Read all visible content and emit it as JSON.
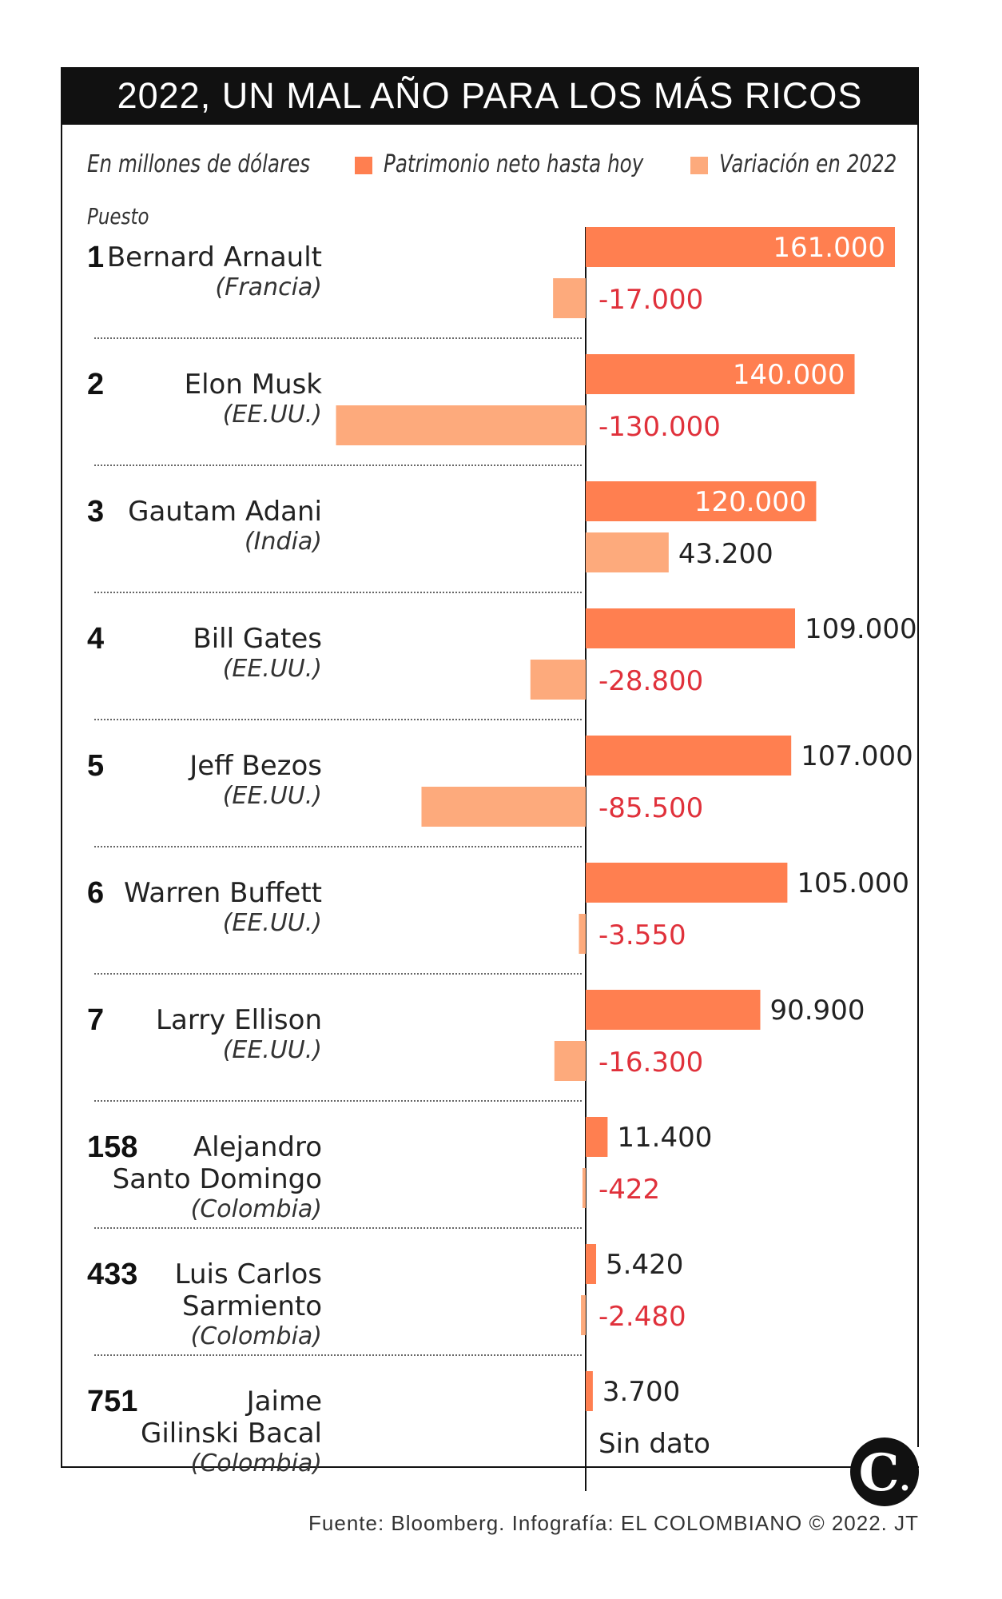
{
  "title": "2022, UN MAL AÑO PARA LOS MÁS RICOS",
  "unit_note": "En millones de dólares",
  "rank_header": "Puesto",
  "colors": {
    "net_worth": "#ff7f50",
    "change": "#fdaa7c",
    "negative_label": "#e0313b",
    "text": "#222222"
  },
  "chart_data": {
    "type": "bar",
    "orientation": "horizontal",
    "unit": "En millones de dólares",
    "series": [
      {
        "name": "Patrimonio neto hasta hoy",
        "values": [
          161000,
          140000,
          120000,
          109000,
          107000,
          105000,
          90900,
          11400,
          5420,
          3700
        ]
      },
      {
        "name": "Variación en 2022",
        "values": [
          -17000,
          -130000,
          43200,
          -28800,
          -85500,
          -3550,
          -16300,
          -422,
          -2480,
          null
        ]
      }
    ],
    "rows": [
      {
        "rank": "1",
        "name": [
          "Bernard Arnault"
        ],
        "country": "(Francia)",
        "net": 161000,
        "net_label": "161.000",
        "change": -17000,
        "change_label": "-17.000"
      },
      {
        "rank": "2",
        "name": [
          "Elon Musk"
        ],
        "country": "(EE.UU.)",
        "net": 140000,
        "net_label": "140.000",
        "change": -130000,
        "change_label": "-130.000"
      },
      {
        "rank": "3",
        "name": [
          "Gautam Adani"
        ],
        "country": "(India)",
        "net": 120000,
        "net_label": "120.000",
        "change": 43200,
        "change_label": "43.200"
      },
      {
        "rank": "4",
        "name": [
          "Bill Gates"
        ],
        "country": "(EE.UU.)",
        "net": 109000,
        "net_label": "109.000",
        "change": -28800,
        "change_label": "-28.800"
      },
      {
        "rank": "5",
        "name": [
          "Jeff Bezos"
        ],
        "country": "(EE.UU.)",
        "net": 107000,
        "net_label": "107.000",
        "change": -85500,
        "change_label": "-85.500"
      },
      {
        "rank": "6",
        "name": [
          "Warren Buffett"
        ],
        "country": "(EE.UU.)",
        "net": 105000,
        "net_label": "105.000",
        "change": -3550,
        "change_label": "-3.550"
      },
      {
        "rank": "7",
        "name": [
          "Larry Ellison"
        ],
        "country": "(EE.UU.)",
        "net": 90900,
        "net_label": "90.900",
        "change": -16300,
        "change_label": "-16.300"
      },
      {
        "rank": "158",
        "name": [
          "Alejandro",
          "Santo Domingo"
        ],
        "country": "(Colombia)",
        "net": 11400,
        "net_label": "11.400",
        "change": -422,
        "change_label": "-422"
      },
      {
        "rank": "433",
        "name": [
          "Luis Carlos",
          "Sarmiento"
        ],
        "country": "(Colombia)",
        "net": 5420,
        "net_label": "5.420",
        "change": -2480,
        "change_label": "-2.480"
      },
      {
        "rank": "751",
        "name": [
          "Jaime",
          "Gilinski Bacal"
        ],
        "country": "(Colombia)",
        "net": 3700,
        "net_label": "3.700",
        "change": null,
        "change_label": "Sin dato"
      }
    ]
  },
  "legend": {
    "net_label": "Patrimonio neto hasta hoy",
    "change_label": "Variación en 2022"
  },
  "source": "Fuente: Bloomberg. Infografía: EL COLOMBIANO © 2022. JT",
  "logo_letter": "C",
  "logo_dot": "."
}
